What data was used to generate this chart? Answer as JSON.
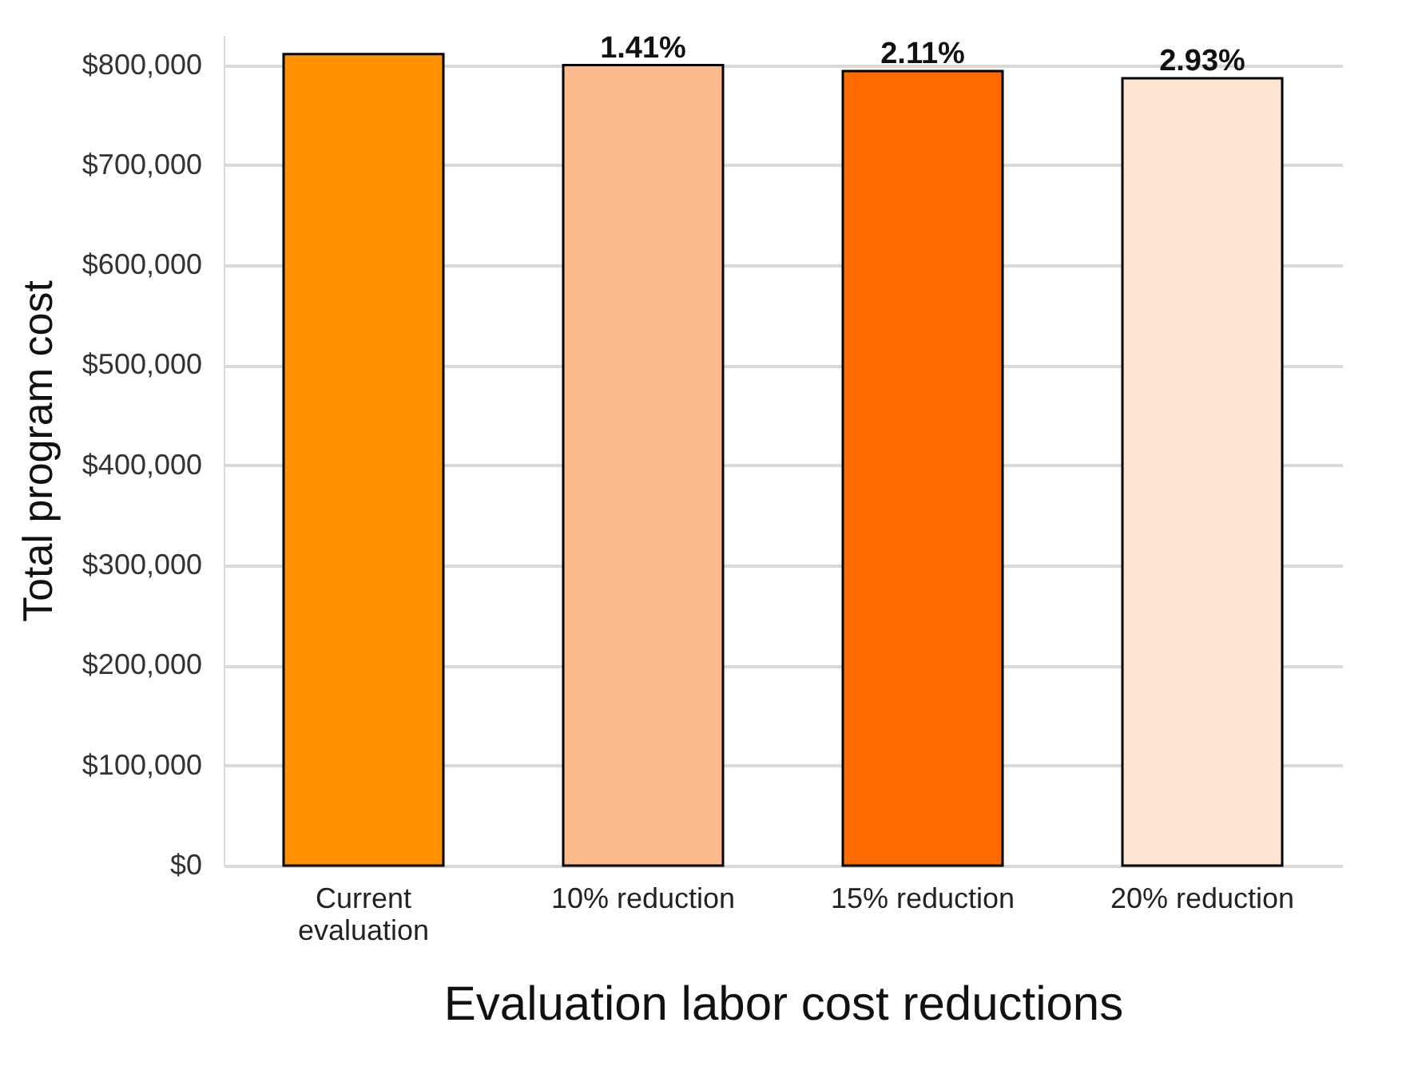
{
  "chart_data": {
    "type": "bar",
    "xlabel": "Evaluation labor cost reductions",
    "ylabel": "Total program cost",
    "categories": [
      "Current\nevaluation",
      "10% reduction",
      "15% reduction",
      "20% reduction"
    ],
    "values": [
      811000,
      800000,
      794000,
      787000
    ],
    "colors": [
      "#ff9100",
      "#fbbb8c",
      "#ff6a00",
      "#fde5d3"
    ],
    "annotations": [
      {
        "text": "1.41%",
        "x": "10% reduction",
        "y": 800000
      },
      {
        "text": "2.11%",
        "x": "15% reduction",
        "y": 794000
      },
      {
        "text": "2.93%",
        "x": "20% reduction",
        "y": 787000
      }
    ],
    "ylim": [
      0,
      830000
    ],
    "yticks": [
      {
        "value": 0,
        "label": "$0"
      },
      {
        "value": 100000,
        "label": "$100,000"
      },
      {
        "value": 200000,
        "label": "$200,000"
      },
      {
        "value": 300000,
        "label": "$300,000"
      },
      {
        "value": 400000,
        "label": "$400,000"
      },
      {
        "value": 500000,
        "label": "$500,000"
      },
      {
        "value": 600000,
        "label": "$600,000"
      },
      {
        "value": 700000,
        "label": "$700,000"
      },
      {
        "value": 800000,
        "label": "$800,000"
      }
    ],
    "grid": "y"
  }
}
